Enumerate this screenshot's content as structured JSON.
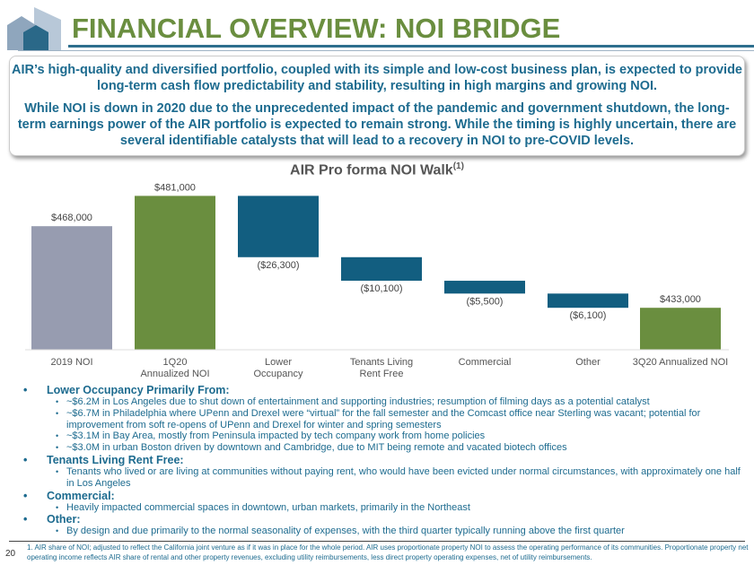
{
  "header": {
    "title": "FINANCIAL OVERVIEW: NOI BRIDGE"
  },
  "summary": {
    "p1": "AIR’s high-quality and diversified portfolio, coupled with its simple and low-cost business plan, is expected to provide long-term cash flow predictability and stability, resulting in high margins and growing NOI.",
    "p2": "While NOI is down in 2020 due to the unprecedented impact of the pandemic and government shutdown, the long-term earnings power of the AIR portfolio is expected to remain strong. While the timing is highly uncertain, there are several identifiable catalysts that will lead to a recovery in NOI to pre-COVID levels."
  },
  "chart_data": {
    "type": "waterfall",
    "title": "AIR Pro forma NOI Walk",
    "title_sup": "(1)",
    "ylim": [
      415000,
      490000
    ],
    "categories": [
      [
        "2019 NOI"
      ],
      [
        "1Q20",
        "Annualized NOI"
      ],
      [
        "Lower",
        "Occupancy"
      ],
      [
        "Tenants Living",
        "Rent Free"
      ],
      [
        "Commercial"
      ],
      [
        "Other"
      ],
      [
        "3Q20 Annualized NOI"
      ]
    ],
    "values": [
      468000,
      481000,
      -26300,
      -10100,
      -5500,
      -6100,
      433000
    ],
    "kinds": [
      "total",
      "total",
      "delta",
      "delta",
      "delta",
      "delta",
      "total"
    ],
    "labels": [
      "$468,000",
      "$481,000",
      "($26,300)",
      "($10,100)",
      "($5,500)",
      "($6,100)",
      "$433,000"
    ],
    "colors": {
      "2019": "#979cb0",
      "total": "#6a8e3f",
      "delta": "#125e80"
    }
  },
  "notes": [
    {
      "head": "Lower Occupancy Primarily From:",
      "subs": [
        "~$6.2M in Los Angeles due to shut down of entertainment and supporting industries; resumption of filming days as a potential catalyst",
        "~$6.7M in Philadelphia where UPenn and Drexel were “virtual” for the fall semester and the Comcast office near Sterling was vacant; potential for improvement from soft re-opens of UPenn and Drexel for winter and spring semesters",
        "~$3.1M in Bay Area, mostly from Peninsula impacted by tech company work from home policies",
        "~$3.0M in urban Boston driven by downtown and Cambridge, due to MIT being remote and vacated biotech offices"
      ]
    },
    {
      "head": "Tenants Living Rent Free:",
      "subs": [
        "Tenants who lived or are living at communities without paying rent, who would have been evicted under normal circumstances, with approximately one half in Los Angeles"
      ]
    },
    {
      "head": "Commercial:",
      "subs": [
        "Heavily impacted commercial spaces in downtown, urban markets, primarily in the Northeast"
      ]
    },
    {
      "head": "Other:",
      "subs": [
        "By design and due primarily to the normal seasonality of expenses, with the third quarter typically running above the first quarter"
      ]
    }
  ],
  "footer": {
    "page": "20",
    "footnote": "1.   AIR share of NOI; adjusted to reflect the California joint venture as if it was in place for the whole period. AIR uses proportionate property NOI to assess the operating performance of its communities. Proportionate property net operating income reflects AIR share of rental and other property revenues, excluding utility reimbursements, less direct property operating expenses, net of utility reimbursements."
  }
}
